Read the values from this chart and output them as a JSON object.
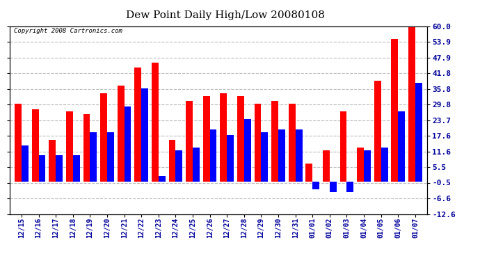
{
  "title": "Dew Point Daily High/Low 20080108",
  "copyright": "Copyright 2008 Cartronics.com",
  "dates": [
    "12/15",
    "12/16",
    "12/17",
    "12/18",
    "12/19",
    "12/20",
    "12/21",
    "12/22",
    "12/23",
    "12/24",
    "12/25",
    "12/26",
    "12/27",
    "12/28",
    "12/29",
    "12/30",
    "12/31",
    "01/01",
    "01/02",
    "01/03",
    "01/04",
    "01/05",
    "01/06",
    "01/07"
  ],
  "high": [
    30,
    28,
    16,
    27,
    26,
    34,
    37,
    44,
    46,
    16,
    31,
    33,
    34,
    33,
    30,
    31,
    30,
    7,
    12,
    27,
    13,
    39,
    55,
    60
  ],
  "low": [
    14,
    10,
    10,
    10,
    19,
    19,
    29,
    36,
    2,
    12,
    13,
    20,
    18,
    24,
    19,
    20,
    20,
    -3,
    -4,
    -4,
    12,
    13,
    27,
    38
  ],
  "high_color": "#ff0000",
  "low_color": "#0000ff",
  "bg_color": "#ffffff",
  "plot_bg": "#ffffff",
  "grid_color": "#bbbbbb",
  "yticks": [
    60.0,
    53.9,
    47.9,
    41.8,
    35.8,
    29.8,
    23.7,
    17.6,
    11.6,
    5.5,
    -0.5,
    -6.6,
    -12.6
  ],
  "ymin": -12.6,
  "ymax": 60.0,
  "bar_width": 0.4
}
